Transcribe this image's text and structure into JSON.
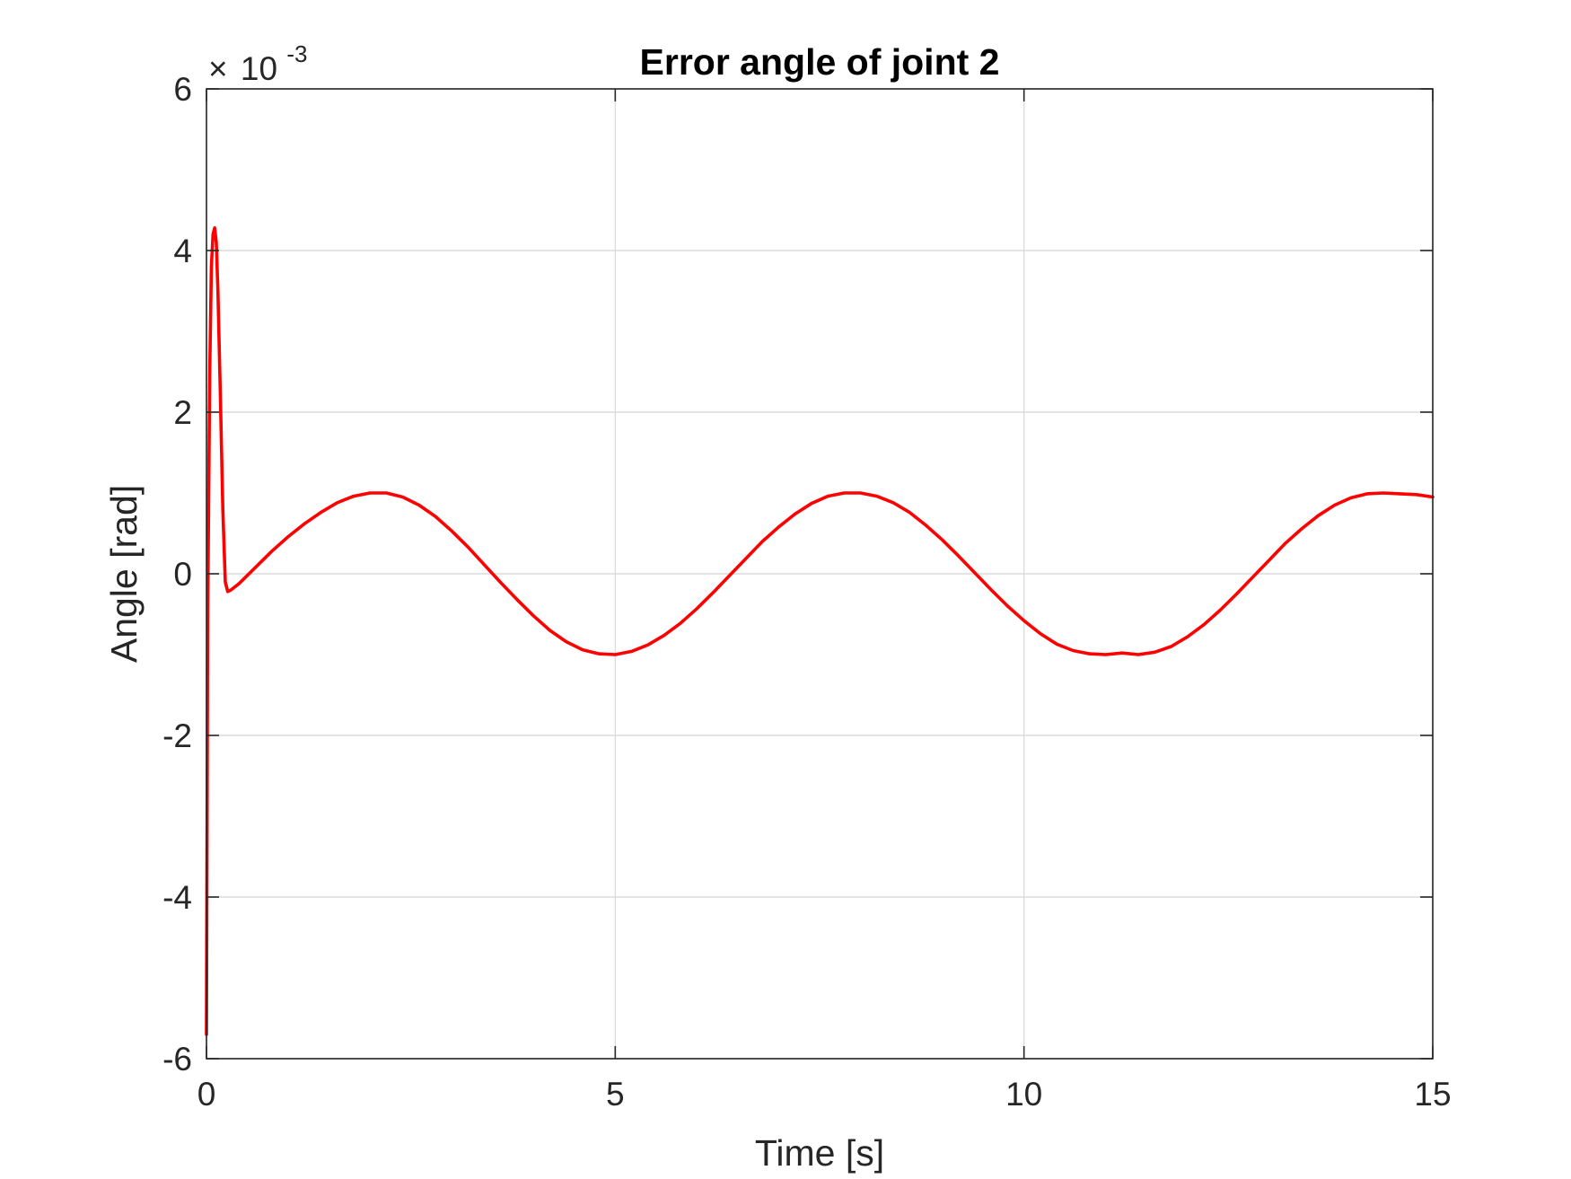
{
  "chart_data": {
    "type": "line",
    "title": "Error angle of joint 2",
    "xlabel": "Time [s]",
    "ylabel": "Angle [rad]",
    "xlim": [
      0,
      15
    ],
    "ylim": [
      -0.006,
      0.006
    ],
    "x_ticks": [
      0,
      5,
      10,
      15
    ],
    "x_tick_labels": [
      "0",
      "5",
      "10",
      "15"
    ],
    "y_ticks": [
      -0.006,
      -0.004,
      -0.002,
      0,
      0.002,
      0.004,
      0.006
    ],
    "y_tick_labels": [
      "-6",
      "-4",
      "-2",
      "0",
      "2",
      "4",
      "6"
    ],
    "y_exponent_base": "10",
    "y_exponent_multiplier": "×",
    "y_exponent_power": "-3",
    "grid": true,
    "legend": false,
    "colors": {
      "line": "#ff0000",
      "grid": "#dcdcdc",
      "axes": "#262626"
    },
    "series": [
      {
        "x": [
          0,
          0.015,
          0.04,
          0.06,
          0.08,
          0.1,
          0.12,
          0.14,
          0.17,
          0.2,
          0.23,
          0.26,
          0.3,
          0.4,
          0.5,
          0.6,
          0.8,
          1.0,
          1.2,
          1.4,
          1.6,
          1.8,
          2.0,
          2.2,
          2.4,
          2.6,
          2.8,
          3.0,
          3.2,
          3.4,
          3.6,
          3.8,
          4.0,
          4.2,
          4.4,
          4.6,
          4.8,
          5.0,
          5.2,
          5.4,
          5.6,
          5.8,
          6.0,
          6.2,
          6.4,
          6.6,
          6.8,
          7.0,
          7.2,
          7.4,
          7.6,
          7.8,
          8.0,
          8.2,
          8.4,
          8.6,
          8.8,
          9.0,
          9.2,
          9.4,
          9.6,
          9.8,
          10.0,
          10.2,
          10.4,
          10.6,
          10.8,
          11.0,
          11.2,
          11.4,
          11.6,
          11.8,
          12.0,
          12.2,
          12.4,
          12.6,
          12.8,
          13.0,
          13.2,
          13.4,
          13.6,
          13.8,
          14.0,
          14.2,
          14.4,
          14.6,
          14.8,
          15.0
        ],
        "y": [
          -0.0057,
          -0.0005,
          0.0025,
          0.0038,
          0.0042,
          0.00428,
          0.0041,
          0.0035,
          0.0022,
          0.0008,
          -0.0001,
          -0.00022,
          -0.0002,
          -0.00012,
          -2e-05,
          8e-05,
          0.00028,
          0.00046,
          0.00062,
          0.00076,
          0.00088,
          0.00096,
          0.001,
          0.001,
          0.00095,
          0.00085,
          0.00071,
          0.00053,
          0.00033,
          0.00011,
          -0.00011,
          -0.00032,
          -0.00052,
          -0.0007,
          -0.00084,
          -0.00094,
          -0.00099,
          -0.001,
          -0.00096,
          -0.00088,
          -0.00076,
          -0.00061,
          -0.00043,
          -0.00023,
          -2e-05,
          0.00019,
          0.0004,
          0.00058,
          0.00074,
          0.00087,
          0.00096,
          0.001,
          0.001,
          0.00096,
          0.00088,
          0.00076,
          0.0006,
          0.00042,
          0.00022,
          1e-05,
          -0.0002,
          -0.0004,
          -0.00058,
          -0.00074,
          -0.00087,
          -0.00095,
          -0.00099,
          -0.001,
          -0.00098,
          -0.001,
          -0.00097,
          -0.0009,
          -0.00078,
          -0.00063,
          -0.00045,
          -0.00025,
          -4e-05,
          0.00017,
          0.00038,
          0.00056,
          0.00072,
          0.00085,
          0.00094,
          0.00099,
          0.001,
          0.00099,
          0.00098,
          0.00095
        ]
      }
    ]
  }
}
